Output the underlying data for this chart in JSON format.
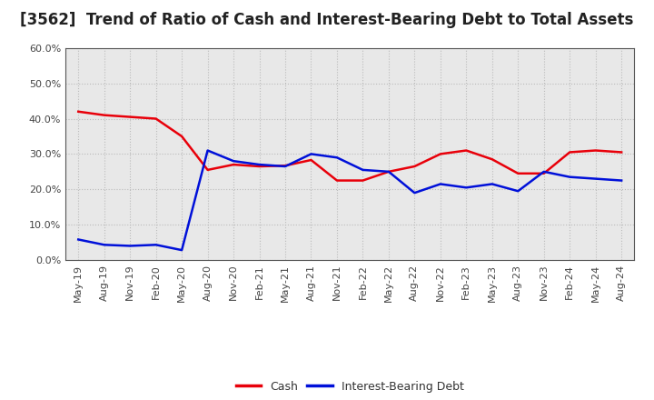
{
  "title": "[3562]  Trend of Ratio of Cash and Interest-Bearing Debt to Total Assets",
  "x_labels": [
    "May-19",
    "Aug-19",
    "Nov-19",
    "Feb-20",
    "May-20",
    "Aug-20",
    "Nov-20",
    "Feb-21",
    "May-21",
    "Aug-21",
    "Nov-21",
    "Feb-22",
    "May-22",
    "Aug-22",
    "Nov-22",
    "Feb-23",
    "May-23",
    "Aug-23",
    "Nov-23",
    "Feb-24",
    "May-24",
    "Aug-24"
  ],
  "cash": [
    0.42,
    0.41,
    0.405,
    0.4,
    0.35,
    0.255,
    0.27,
    0.265,
    0.267,
    0.283,
    0.225,
    0.225,
    0.25,
    0.265,
    0.3,
    0.31,
    0.285,
    0.245,
    0.245,
    0.305,
    0.31,
    0.305
  ],
  "ibd": [
    0.058,
    0.043,
    0.04,
    0.043,
    0.028,
    0.31,
    0.28,
    0.27,
    0.265,
    0.3,
    0.29,
    0.255,
    0.25,
    0.19,
    0.215,
    0.205,
    0.215,
    0.195,
    0.25,
    0.235,
    0.23,
    0.225
  ],
  "cash_color": "#e8000a",
  "ibd_color": "#0010d9",
  "fig_background": "#ffffff",
  "plot_background": "#e8e8e8",
  "grid_color": "#bbbbbb",
  "ylim": [
    0.0,
    0.6
  ],
  "yticks": [
    0.0,
    0.1,
    0.2,
    0.3,
    0.4,
    0.5,
    0.6
  ],
  "legend_cash": "Cash",
  "legend_ibd": "Interest-Bearing Debt",
  "title_fontsize": 12,
  "axis_fontsize": 8,
  "legend_fontsize": 9,
  "linewidth": 1.8
}
